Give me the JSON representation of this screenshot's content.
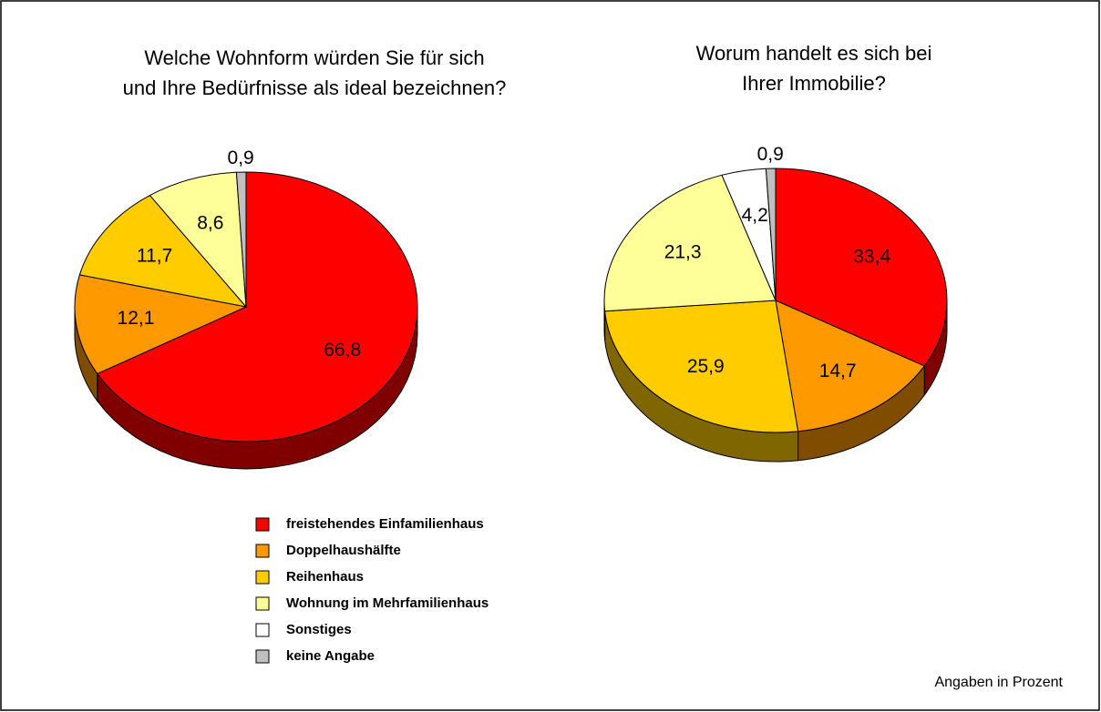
{
  "chart_data": [
    {
      "type": "pie",
      "title": [
        "Welche Wohnform würden Sie für sich",
        "und Ihre Bedürfnisse als ideal bezeichnen?"
      ],
      "values": [
        66.8,
        12.1,
        11.7,
        8.6,
        null,
        0.9
      ],
      "value_labels": [
        "66,8",
        "12,1",
        "11,7",
        "8,6",
        null,
        "0,9"
      ]
    },
    {
      "type": "pie",
      "title": [
        "Worum handelt es sich bei",
        "Ihrer Immobilie?"
      ],
      "values": [
        33.4,
        14.7,
        25.9,
        21.3,
        4.2,
        0.9
      ],
      "value_labels": [
        "33,4",
        "14,7",
        "25,9",
        "21,3",
        "4,2",
        "0,9"
      ]
    }
  ],
  "legend": {
    "labels": [
      "freistehendes Einfamilienhaus",
      "Doppelhaushälfte",
      "Reihenhaus",
      "Wohnung im Mehrfamilienhaus",
      "Sonstiges",
      "keine Angabe"
    ],
    "colors": [
      "#ff0000",
      "#ff9900",
      "#ffcc00",
      "#ffff99",
      "#ffffff",
      "#c0c0c0"
    ]
  },
  "note": "Angaben in Prozent"
}
